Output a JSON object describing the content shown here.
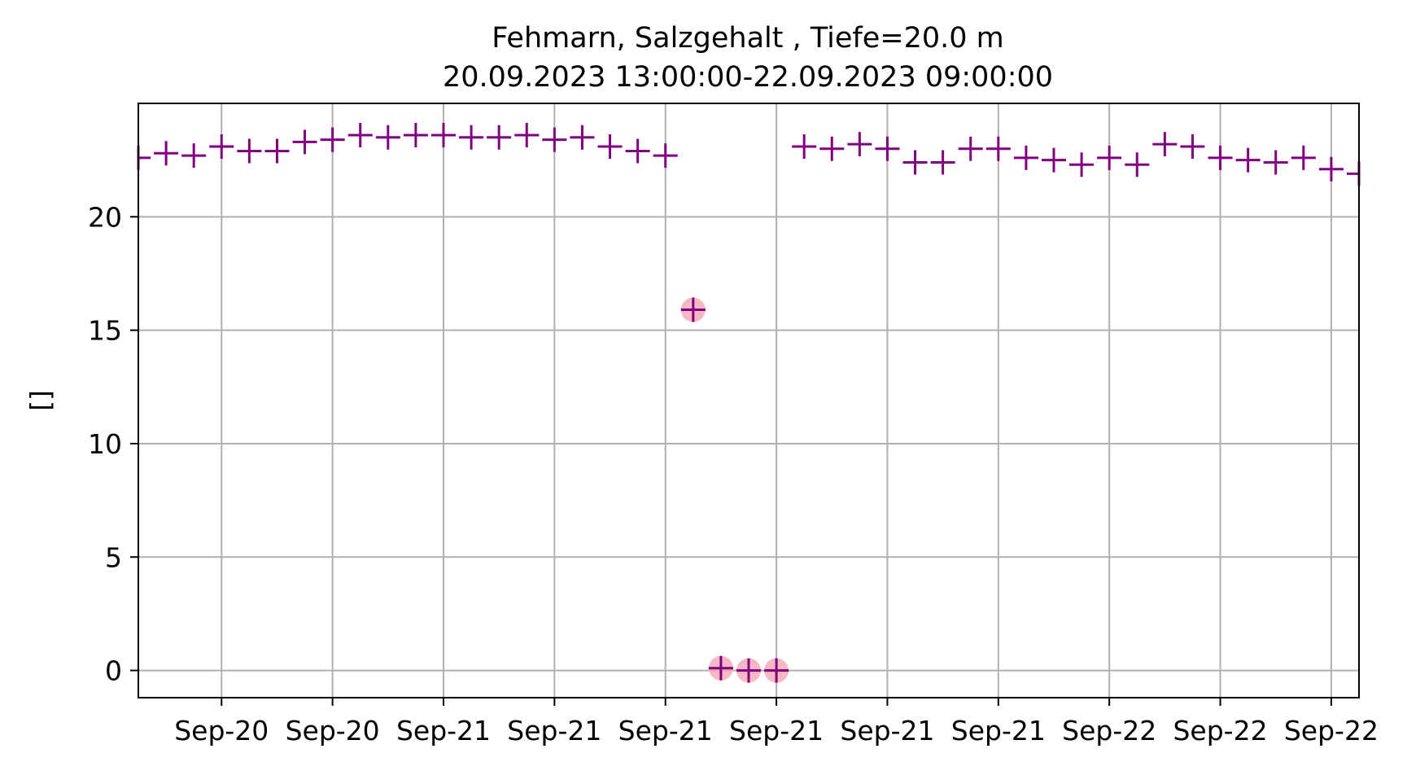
{
  "chart_data": {
    "type": "scatter",
    "title_lines": [
      "Fehmarn, Salzgehalt , Tiefe=20.0 m",
      "20.09.2023 13:00:00-22.09.2023 09:00:00"
    ],
    "ylabel": "[]",
    "ylim": [
      -1.2,
      25
    ],
    "yticks": [
      0,
      5,
      10,
      15,
      20
    ],
    "grid": true,
    "x_start": "2023-09-20 13:00",
    "x_end": "2023-09-22 09:00",
    "xticks": [
      {
        "x": "2023-09-20 16:00",
        "label": "Sep-20"
      },
      {
        "x": "2023-09-20 20:00",
        "label": "Sep-20"
      },
      {
        "x": "2023-09-21 00:00",
        "label": "Sep-21"
      },
      {
        "x": "2023-09-21 04:00",
        "label": "Sep-21"
      },
      {
        "x": "2023-09-21 08:00",
        "label": "Sep-21"
      },
      {
        "x": "2023-09-21 12:00",
        "label": "Sep-21"
      },
      {
        "x": "2023-09-21 16:00",
        "label": "Sep-21"
      },
      {
        "x": "2023-09-21 20:00",
        "label": "Sep-21"
      },
      {
        "x": "2023-09-22 00:00",
        "label": "Sep-22"
      },
      {
        "x": "2023-09-22 04:00",
        "label": "Sep-22"
      },
      {
        "x": "2023-09-22 08:00",
        "label": "Sep-22"
      }
    ],
    "marker_color": "#800080",
    "flag_color": "#f4a6b4",
    "series": [
      {
        "marker": "+",
        "points": [
          {
            "x": "2023-09-20 13:00",
            "y": 22.6
          },
          {
            "x": "2023-09-20 14:00",
            "y": 22.8
          },
          {
            "x": "2023-09-20 15:00",
            "y": 22.7
          },
          {
            "x": "2023-09-20 16:00",
            "y": 23.1
          },
          {
            "x": "2023-09-20 17:00",
            "y": 22.9
          },
          {
            "x": "2023-09-20 18:00",
            "y": 22.9
          },
          {
            "x": "2023-09-20 19:00",
            "y": 23.3
          },
          {
            "x": "2023-09-20 20:00",
            "y": 23.4
          },
          {
            "x": "2023-09-20 21:00",
            "y": 23.6
          },
          {
            "x": "2023-09-20 22:00",
            "y": 23.5
          },
          {
            "x": "2023-09-20 23:00",
            "y": 23.6
          },
          {
            "x": "2023-09-21 00:00",
            "y": 23.6
          },
          {
            "x": "2023-09-21 01:00",
            "y": 23.5
          },
          {
            "x": "2023-09-21 02:00",
            "y": 23.5
          },
          {
            "x": "2023-09-21 03:00",
            "y": 23.6
          },
          {
            "x": "2023-09-21 04:00",
            "y": 23.4
          },
          {
            "x": "2023-09-21 05:00",
            "y": 23.5
          },
          {
            "x": "2023-09-21 06:00",
            "y": 23.1
          },
          {
            "x": "2023-09-21 07:00",
            "y": 22.9
          },
          {
            "x": "2023-09-21 08:00",
            "y": 22.7
          },
          {
            "x": "2023-09-21 09:00",
            "y": 15.9,
            "flagged": true
          },
          {
            "x": "2023-09-21 10:00",
            "y": 0.1,
            "flagged": true
          },
          {
            "x": "2023-09-21 11:00",
            "y": 0.0,
            "flagged": true
          },
          {
            "x": "2023-09-21 12:00",
            "y": 0.0,
            "flagged": true
          },
          {
            "x": "2023-09-21 13:00",
            "y": 23.1
          },
          {
            "x": "2023-09-21 14:00",
            "y": 23.0
          },
          {
            "x": "2023-09-21 15:00",
            "y": 23.2
          },
          {
            "x": "2023-09-21 16:00",
            "y": 23.0
          },
          {
            "x": "2023-09-21 17:00",
            "y": 22.4
          },
          {
            "x": "2023-09-21 18:00",
            "y": 22.4
          },
          {
            "x": "2023-09-21 19:00",
            "y": 23.0
          },
          {
            "x": "2023-09-21 20:00",
            "y": 23.0
          },
          {
            "x": "2023-09-21 21:00",
            "y": 22.6
          },
          {
            "x": "2023-09-21 22:00",
            "y": 22.5
          },
          {
            "x": "2023-09-21 23:00",
            "y": 22.3
          },
          {
            "x": "2023-09-22 00:00",
            "y": 22.6
          },
          {
            "x": "2023-09-22 01:00",
            "y": 22.3
          },
          {
            "x": "2023-09-22 02:00",
            "y": 23.2
          },
          {
            "x": "2023-09-22 03:00",
            "y": 23.1
          },
          {
            "x": "2023-09-22 04:00",
            "y": 22.6
          },
          {
            "x": "2023-09-22 05:00",
            "y": 22.5
          },
          {
            "x": "2023-09-22 06:00",
            "y": 22.4
          },
          {
            "x": "2023-09-22 07:00",
            "y": 22.6
          },
          {
            "x": "2023-09-22 08:00",
            "y": 22.1
          },
          {
            "x": "2023-09-22 09:00",
            "y": 21.9
          }
        ]
      }
    ]
  }
}
